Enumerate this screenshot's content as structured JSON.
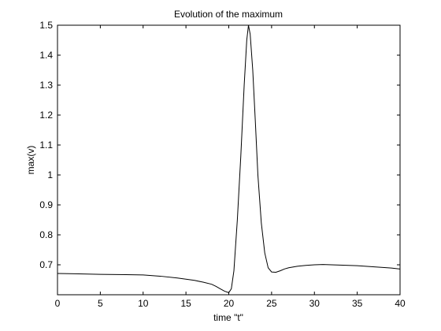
{
  "chart_data": {
    "type": "line",
    "title": "Evolution of the maximum",
    "xlabel": "time \"t\"",
    "ylabel": "max(v)",
    "xlim": [
      0,
      40
    ],
    "ylim": [
      0.6,
      1.5
    ],
    "xticks": [
      0,
      5,
      10,
      15,
      20,
      25,
      30,
      35,
      40
    ],
    "yticks": [
      0.7,
      0.8,
      0.9,
      1,
      1.1,
      1.2,
      1.3,
      1.4,
      1.5
    ],
    "xtick_labels": [
      "0",
      "5",
      "10",
      "15",
      "20",
      "25",
      "30",
      "35",
      "40"
    ],
    "ytick_labels": [
      "0.7",
      "0.8",
      "0.9",
      "1",
      "1.1",
      "1.2",
      "1.3",
      "1.4",
      "1.5"
    ],
    "grid": false,
    "legend": "none",
    "line_color": "#000000",
    "series": [
      {
        "x": [
          0,
          2,
          5,
          8,
          10,
          12,
          14,
          16,
          17,
          18,
          18.5,
          19,
          19.5,
          20,
          20.3,
          20.6,
          21,
          21.4,
          21.8,
          22.1,
          22.3,
          22.5,
          22.8,
          23.1,
          23.4,
          23.8,
          24.2,
          24.6,
          25,
          25.5,
          26,
          26.5,
          27,
          28,
          29,
          30,
          31,
          32,
          33,
          34,
          35,
          36,
          37,
          38,
          39,
          40
        ],
        "y": [
          0.671,
          0.67,
          0.668,
          0.667,
          0.666,
          0.662,
          0.656,
          0.648,
          0.642,
          0.635,
          0.628,
          0.62,
          0.612,
          0.607,
          0.62,
          0.68,
          0.85,
          1.06,
          1.3,
          1.45,
          1.5,
          1.47,
          1.35,
          1.18,
          1.0,
          0.84,
          0.74,
          0.69,
          0.676,
          0.675,
          0.68,
          0.686,
          0.69,
          0.695,
          0.698,
          0.7,
          0.701,
          0.7,
          0.699,
          0.698,
          0.697,
          0.695,
          0.693,
          0.691,
          0.689,
          0.686
        ]
      }
    ]
  }
}
